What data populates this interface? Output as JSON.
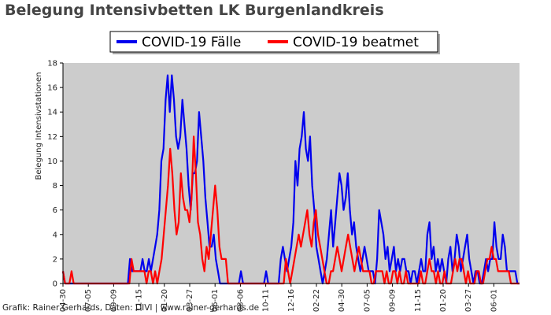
{
  "page": {
    "title": "Belegung Intensivbetten LK Burgenlandkreis",
    "credit": "Grafik: Rainer Gerhards, Daten: DIVI | www.rainer-gerhards.de"
  },
  "chart_data": {
    "type": "line",
    "title": "Belegung Intensivbetten LK Burgenlandkreis",
    "ylabel": "Belegung Intensivstationen",
    "xlabel": "",
    "ylim": [
      0,
      18
    ],
    "yticks": [
      0,
      2,
      4,
      6,
      8,
      10,
      12,
      14,
      16,
      18
    ],
    "xtick_labels": [
      "04-30",
      "07-05",
      "09-09",
      "11-15",
      "01-20",
      "03-27",
      "06-01",
      "08-06",
      "10-11",
      "12-16",
      "02-22",
      "04-30",
      "07-05",
      "09-09",
      "11-15",
      "01-20",
      "03-27",
      "06-01"
    ],
    "grid": false,
    "legend_position": "top-center",
    "background": "#cccccc",
    "series": [
      {
        "name": "COVID-19 Fälle",
        "color": "#0000ee",
        "values": [
          1,
          0,
          0,
          0,
          0,
          0,
          0,
          0,
          0,
          0,
          0,
          0,
          0,
          0,
          0,
          0,
          0,
          0,
          0,
          0,
          0,
          0,
          0,
          0,
          0,
          0,
          0,
          0,
          0,
          0,
          0,
          0,
          2,
          1,
          1,
          1,
          1,
          1,
          2,
          1,
          1,
          2,
          1,
          2,
          3,
          4,
          6,
          10,
          11,
          15,
          17,
          14,
          17,
          15,
          12,
          11,
          12,
          15,
          13,
          11,
          8,
          6,
          9,
          9,
          10,
          14,
          12,
          10,
          7,
          5,
          3,
          3,
          4,
          2,
          1,
          0,
          0,
          0,
          0,
          0,
          0,
          0,
          0,
          0,
          0,
          1,
          0,
          0,
          0,
          0,
          0,
          0,
          0,
          0,
          0,
          0,
          0,
          1,
          0,
          0,
          0,
          0,
          0,
          0,
          2,
          3,
          2,
          1,
          2,
          3,
          5,
          10,
          8,
          11,
          12,
          14,
          11,
          10,
          12,
          8,
          6,
          3,
          2,
          1,
          0,
          1,
          2,
          4,
          6,
          3,
          5,
          7,
          9,
          8,
          6,
          7,
          9,
          6,
          4,
          5,
          3,
          2,
          1,
          2,
          3,
          2,
          1,
          1,
          1,
          0,
          2,
          6,
          5,
          4,
          2,
          3,
          1,
          2,
          3,
          1,
          2,
          1,
          2,
          2,
          1,
          1,
          0,
          1,
          1,
          0,
          1,
          2,
          1,
          1,
          4,
          5,
          2,
          3,
          1,
          2,
          1,
          2,
          1,
          0,
          2,
          3,
          1,
          2,
          4,
          3,
          1,
          2,
          3,
          4,
          2,
          1,
          0,
          1,
          1,
          0,
          0,
          1,
          2,
          1,
          2,
          2,
          5,
          3,
          2,
          2,
          4,
          3,
          1,
          1,
          1,
          1,
          1,
          0,
          0
        ]
      },
      {
        "name": "COVID-19 beatmet",
        "color": "#ff0000",
        "values": [
          1,
          0,
          0,
          0,
          1,
          0,
          0,
          0,
          0,
          0,
          0,
          0,
          0,
          0,
          0,
          0,
          0,
          0,
          0,
          0,
          0,
          0,
          0,
          0,
          0,
          0,
          0,
          0,
          0,
          0,
          0,
          0,
          2,
          1,
          1,
          1,
          1,
          1,
          1,
          0,
          1,
          1,
          0,
          1,
          0,
          1,
          2,
          4,
          6,
          8,
          11,
          9,
          6,
          4,
          5,
          9,
          7,
          6,
          6,
          5,
          7,
          12,
          9,
          5,
          4,
          2,
          1,
          3,
          2,
          4,
          6,
          8,
          6,
          3,
          2,
          2,
          2,
          0,
          0,
          0,
          0,
          0,
          0,
          0,
          0,
          0,
          0,
          0,
          0,
          0,
          0,
          0,
          0,
          0,
          0,
          0,
          0,
          0,
          0,
          0,
          0,
          0,
          0,
          0,
          2,
          1,
          0,
          1,
          2,
          3,
          4,
          3,
          4,
          5,
          6,
          4,
          3,
          5,
          6,
          4,
          3,
          2,
          1,
          0,
          0,
          1,
          1,
          2,
          3,
          2,
          1,
          2,
          3,
          4,
          3,
          2,
          1,
          2,
          3,
          2,
          1,
          1,
          1,
          1,
          0,
          0,
          1,
          1,
          1,
          1,
          0,
          1,
          0,
          0,
          1,
          1,
          0,
          1,
          0,
          0,
          1,
          0,
          0,
          0,
          0,
          0,
          0,
          1,
          0,
          0,
          1,
          2,
          1,
          1,
          0,
          1,
          0,
          0,
          1,
          0,
          0,
          0,
          1,
          2,
          1,
          2,
          2,
          1,
          0,
          1,
          0,
          0,
          0,
          1,
          1,
          0,
          0,
          1,
          2,
          2,
          3,
          2,
          2,
          1,
          1,
          1,
          1,
          1,
          1,
          0,
          0,
          0,
          0,
          0
        ]
      }
    ]
  }
}
